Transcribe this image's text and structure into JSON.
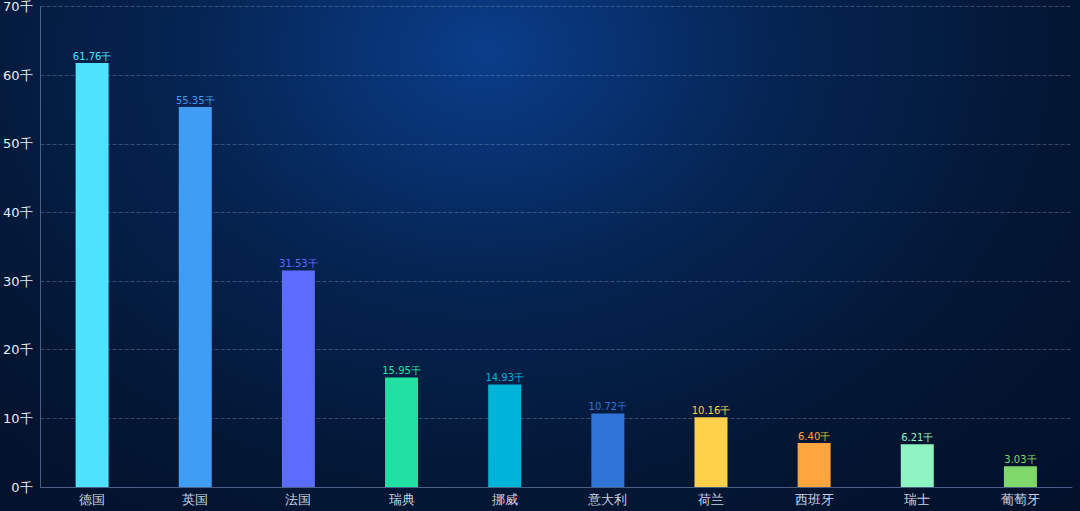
{
  "chart_data": {
    "type": "bar",
    "categories": [
      "德国",
      "英国",
      "法国",
      "瑞典",
      "挪威",
      "意大利",
      "荷兰",
      "西班牙",
      "瑞士",
      "葡萄牙"
    ],
    "values": [
      61.76,
      55.35,
      31.53,
      15.95,
      14.93,
      10.72,
      10.16,
      6.4,
      6.21,
      3.03
    ],
    "value_labels": [
      "61.76千",
      "55.35千",
      "31.53千",
      "15.95千",
      "14.93千",
      "10.72千",
      "10.16千",
      "6.40千",
      "6.21千",
      "3.03千"
    ],
    "colors": [
      "#4ee2ff",
      "#3f9df5",
      "#5b6cff",
      "#22e0a2",
      "#00b3d9",
      "#2f74d6",
      "#ffd04a",
      "#ffa53f",
      "#8ef5c2",
      "#7ed96a"
    ],
    "ylim": [
      0,
      70
    ],
    "yticks": [
      {
        "value": 0,
        "label": "0千"
      },
      {
        "value": 10,
        "label": "10千"
      },
      {
        "value": 20,
        "label": "20千"
      },
      {
        "value": 30,
        "label": "30千"
      },
      {
        "value": 40,
        "label": "40千"
      },
      {
        "value": 50,
        "label": "50千"
      },
      {
        "value": 60,
        "label": "60千"
      },
      {
        "value": 70,
        "label": "70千"
      }
    ],
    "grid": true,
    "data_labels": true
  }
}
